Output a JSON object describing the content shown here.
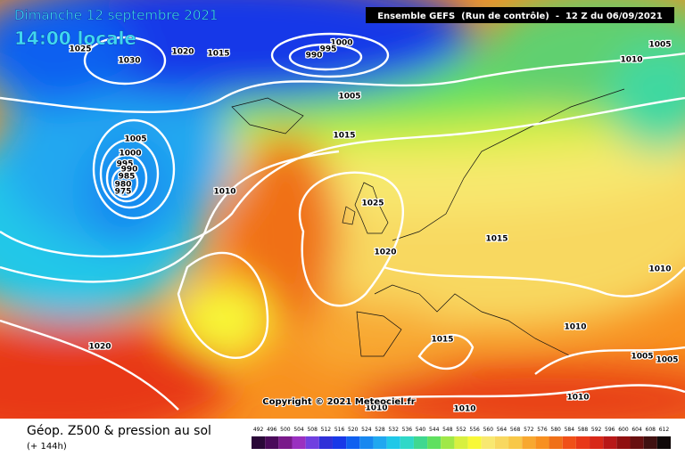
{
  "header": {
    "date": "Dimanche 12 septembre 2021",
    "time": "14:00 locale",
    "model": "Ensemble GEFS  (Run de contrôle)  -  12 Z du 06/09/2021"
  },
  "footer": {
    "copyright": "Copyright © 2021 Meteociel.fr",
    "field": "Géop. Z500 & pression au sol",
    "lead": "(+ 144h)"
  },
  "legend": {
    "values": [
      492,
      496,
      500,
      504,
      508,
      512,
      516,
      520,
      524,
      528,
      532,
      536,
      540,
      544,
      548,
      552,
      556,
      560,
      564,
      568,
      572,
      576,
      580,
      584,
      588,
      592,
      596,
      600,
      604,
      608,
      612
    ],
    "colors": [
      "#2a0838",
      "#4a0a5a",
      "#7a1a8a",
      "#9a30c0",
      "#7040e0",
      "#3030d8",
      "#1838e8",
      "#1060f0",
      "#1888f0",
      "#20a8f0",
      "#20c8e8",
      "#30d8c8",
      "#40d890",
      "#60e060",
      "#a0e848",
      "#d8f040",
      "#f8f838",
      "#f8e870",
      "#f8d860",
      "#f8c848",
      "#f8a830",
      "#f89020",
      "#f07018",
      "#f05018",
      "#e83818",
      "#d82818",
      "#b81818",
      "#901010",
      "#681010",
      "#401010",
      "#100808"
    ]
  },
  "isobars": {
    "labels": [
      1025,
      1030,
      1020,
      1015,
      1000,
      995,
      990,
      1005,
      1010,
      1005,
      1015,
      1005,
      1000,
      995,
      990,
      985,
      980,
      975,
      1010,
      1025,
      1015,
      1020,
      1010,
      1020,
      1015,
      1010,
      1005,
      1005,
      1010,
      1010,
      1010
    ]
  }
}
